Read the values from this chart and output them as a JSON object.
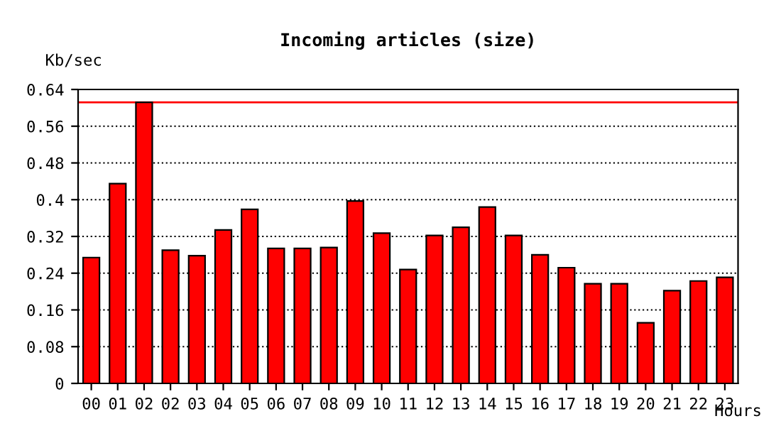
{
  "chart_data": {
    "type": "bar",
    "title": "Incoming articles (size)",
    "xlabel": "Hours",
    "ylabel": "Kb/sec",
    "categories": [
      "00",
      "01",
      "02",
      "02",
      "03",
      "04",
      "05",
      "06",
      "07",
      "08",
      "09",
      "10",
      "11",
      "12",
      "13",
      "14",
      "15",
      "16",
      "17",
      "18",
      "19",
      "20",
      "21",
      "22",
      "23"
    ],
    "values": [
      0.274,
      0.435,
      0.612,
      0.29,
      0.278,
      0.334,
      0.379,
      0.294,
      0.294,
      0.296,
      0.397,
      0.327,
      0.248,
      0.322,
      0.34,
      0.384,
      0.322,
      0.28,
      0.252,
      0.217,
      0.217,
      0.132,
      0.202,
      0.223,
      0.231
    ],
    "color": "#ff0000",
    "ylim": [
      0,
      0.64
    ],
    "yticks": [
      0,
      0.08,
      0.16,
      0.24,
      0.32,
      0.4,
      0.48,
      0.56,
      0.64
    ],
    "grid": "y",
    "line_style": "dotted",
    "ref_lines": [
      {
        "axis": "y",
        "value": 0.612,
        "color": "#ff0000"
      }
    ]
  }
}
